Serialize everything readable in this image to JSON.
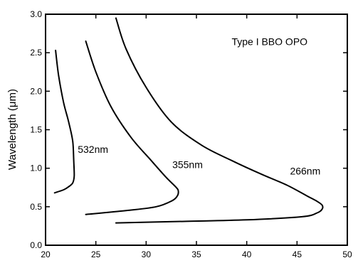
{
  "chart_data": {
    "type": "line",
    "title": "",
    "xlabel": "",
    "ylabel": "Wavelength (μm)",
    "xlim": [
      20,
      50
    ],
    "ylim": [
      0.0,
      3.0
    ],
    "xticks": [
      "20",
      "25",
      "30",
      "35",
      "40",
      "45",
      "50"
    ],
    "yticks": [
      "0.0",
      "0.5",
      "1.0",
      "1.5",
      "2.0",
      "2.5",
      "3.0"
    ],
    "grid": false,
    "legend": "none",
    "annotations": [
      {
        "text": "Type I BBO OPO",
        "x": 38.5,
        "y": 2.6
      },
      {
        "text": "532nm",
        "x": 23.2,
        "y": 1.2
      },
      {
        "text": "355nm",
        "x": 32.6,
        "y": 1.0
      },
      {
        "text": "266nm",
        "x": 44.3,
        "y": 0.92
      }
    ],
    "series": [
      {
        "name": "532nm",
        "x": [
          21.0,
          21.3,
          21.8,
          22.3,
          22.7,
          22.8,
          22.85,
          22.7,
          22.3,
          21.8,
          20.9
        ],
        "y": [
          2.53,
          2.2,
          1.85,
          1.6,
          1.35,
          1.1,
          0.9,
          0.81,
          0.76,
          0.72,
          0.68
        ]
      },
      {
        "name": "355nm",
        "x": [
          24.0,
          25.0,
          26.5,
          28.5,
          30.5,
          32.0,
          33.0,
          33.2,
          33.1,
          32.6,
          31.0,
          28.0,
          24.0
        ],
        "y": [
          2.65,
          2.25,
          1.8,
          1.4,
          1.1,
          0.88,
          0.75,
          0.7,
          0.64,
          0.58,
          0.5,
          0.45,
          0.4
        ]
      },
      {
        "name": "266nm",
        "x": [
          27.0,
          28.0,
          30.0,
          32.5,
          35.5,
          38.5,
          41.5,
          44.0,
          46.0,
          47.0,
          47.5,
          47.5,
          47.0,
          45.5,
          40.0,
          34.0,
          27.0
        ],
        "y": [
          2.95,
          2.55,
          2.05,
          1.6,
          1.3,
          1.1,
          0.92,
          0.78,
          0.64,
          0.57,
          0.52,
          0.47,
          0.42,
          0.37,
          0.33,
          0.31,
          0.29
        ]
      }
    ]
  }
}
